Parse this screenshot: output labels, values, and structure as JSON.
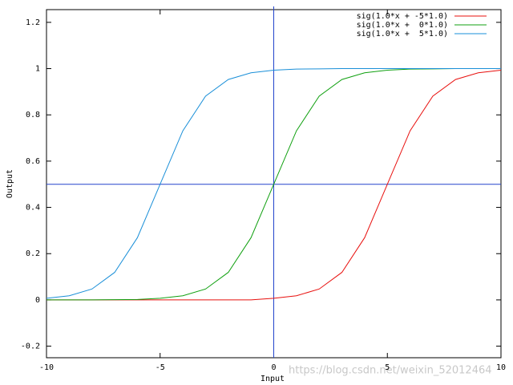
{
  "chart_data": {
    "type": "line",
    "x_label": "Input",
    "y_label": "Output",
    "x": [
      -10,
      -9,
      -8,
      -7,
      -6,
      -5,
      -4,
      -3,
      -2,
      -1,
      0,
      1,
      2,
      3,
      4,
      5,
      6,
      7,
      8,
      9,
      10
    ],
    "series": [
      {
        "name": "sig(1.0*x + -5*1.0)",
        "color": "#e8100e",
        "values": [
          0,
          0,
          0,
          0,
          0,
          0,
          0,
          0,
          0,
          0,
          0.007,
          0.018,
          0.047,
          0.119,
          0.269,
          0.5,
          0.731,
          0.881,
          0.953,
          0.982,
          0.993
        ]
      },
      {
        "name": "sig(1.0*x +  0*1.0)",
        "color": "#10a010",
        "values": [
          0,
          0,
          0,
          0.001,
          0.002,
          0.007,
          0.018,
          0.047,
          0.119,
          0.269,
          0.5,
          0.731,
          0.881,
          0.953,
          0.982,
          0.993,
          0.998,
          0.999,
          1,
          1,
          1
        ]
      },
      {
        "name": "sig(1.0*x +  5*1.0)",
        "color": "#1a8fd8",
        "values": [
          0.007,
          0.018,
          0.047,
          0.119,
          0.269,
          0.5,
          0.731,
          0.881,
          0.953,
          0.982,
          0.993,
          0.998,
          0.999,
          1,
          1,
          1,
          1,
          1,
          1,
          1,
          1
        ]
      }
    ],
    "xlim": [
      -10,
      10
    ],
    "xticks": [
      -10,
      -5,
      0,
      5,
      10
    ],
    "ylim": [
      -0.25,
      1.255
    ],
    "yticks": [
      -0.2,
      0,
      0.2,
      0.4,
      0.6,
      0.8,
      1,
      1.2
    ],
    "reference_lines": {
      "x": [
        0
      ],
      "y": [
        0.5
      ],
      "color": "#2244cc"
    },
    "legend": "top-right",
    "watermark": "https://blog.csdn.net/weixin_52012464"
  }
}
